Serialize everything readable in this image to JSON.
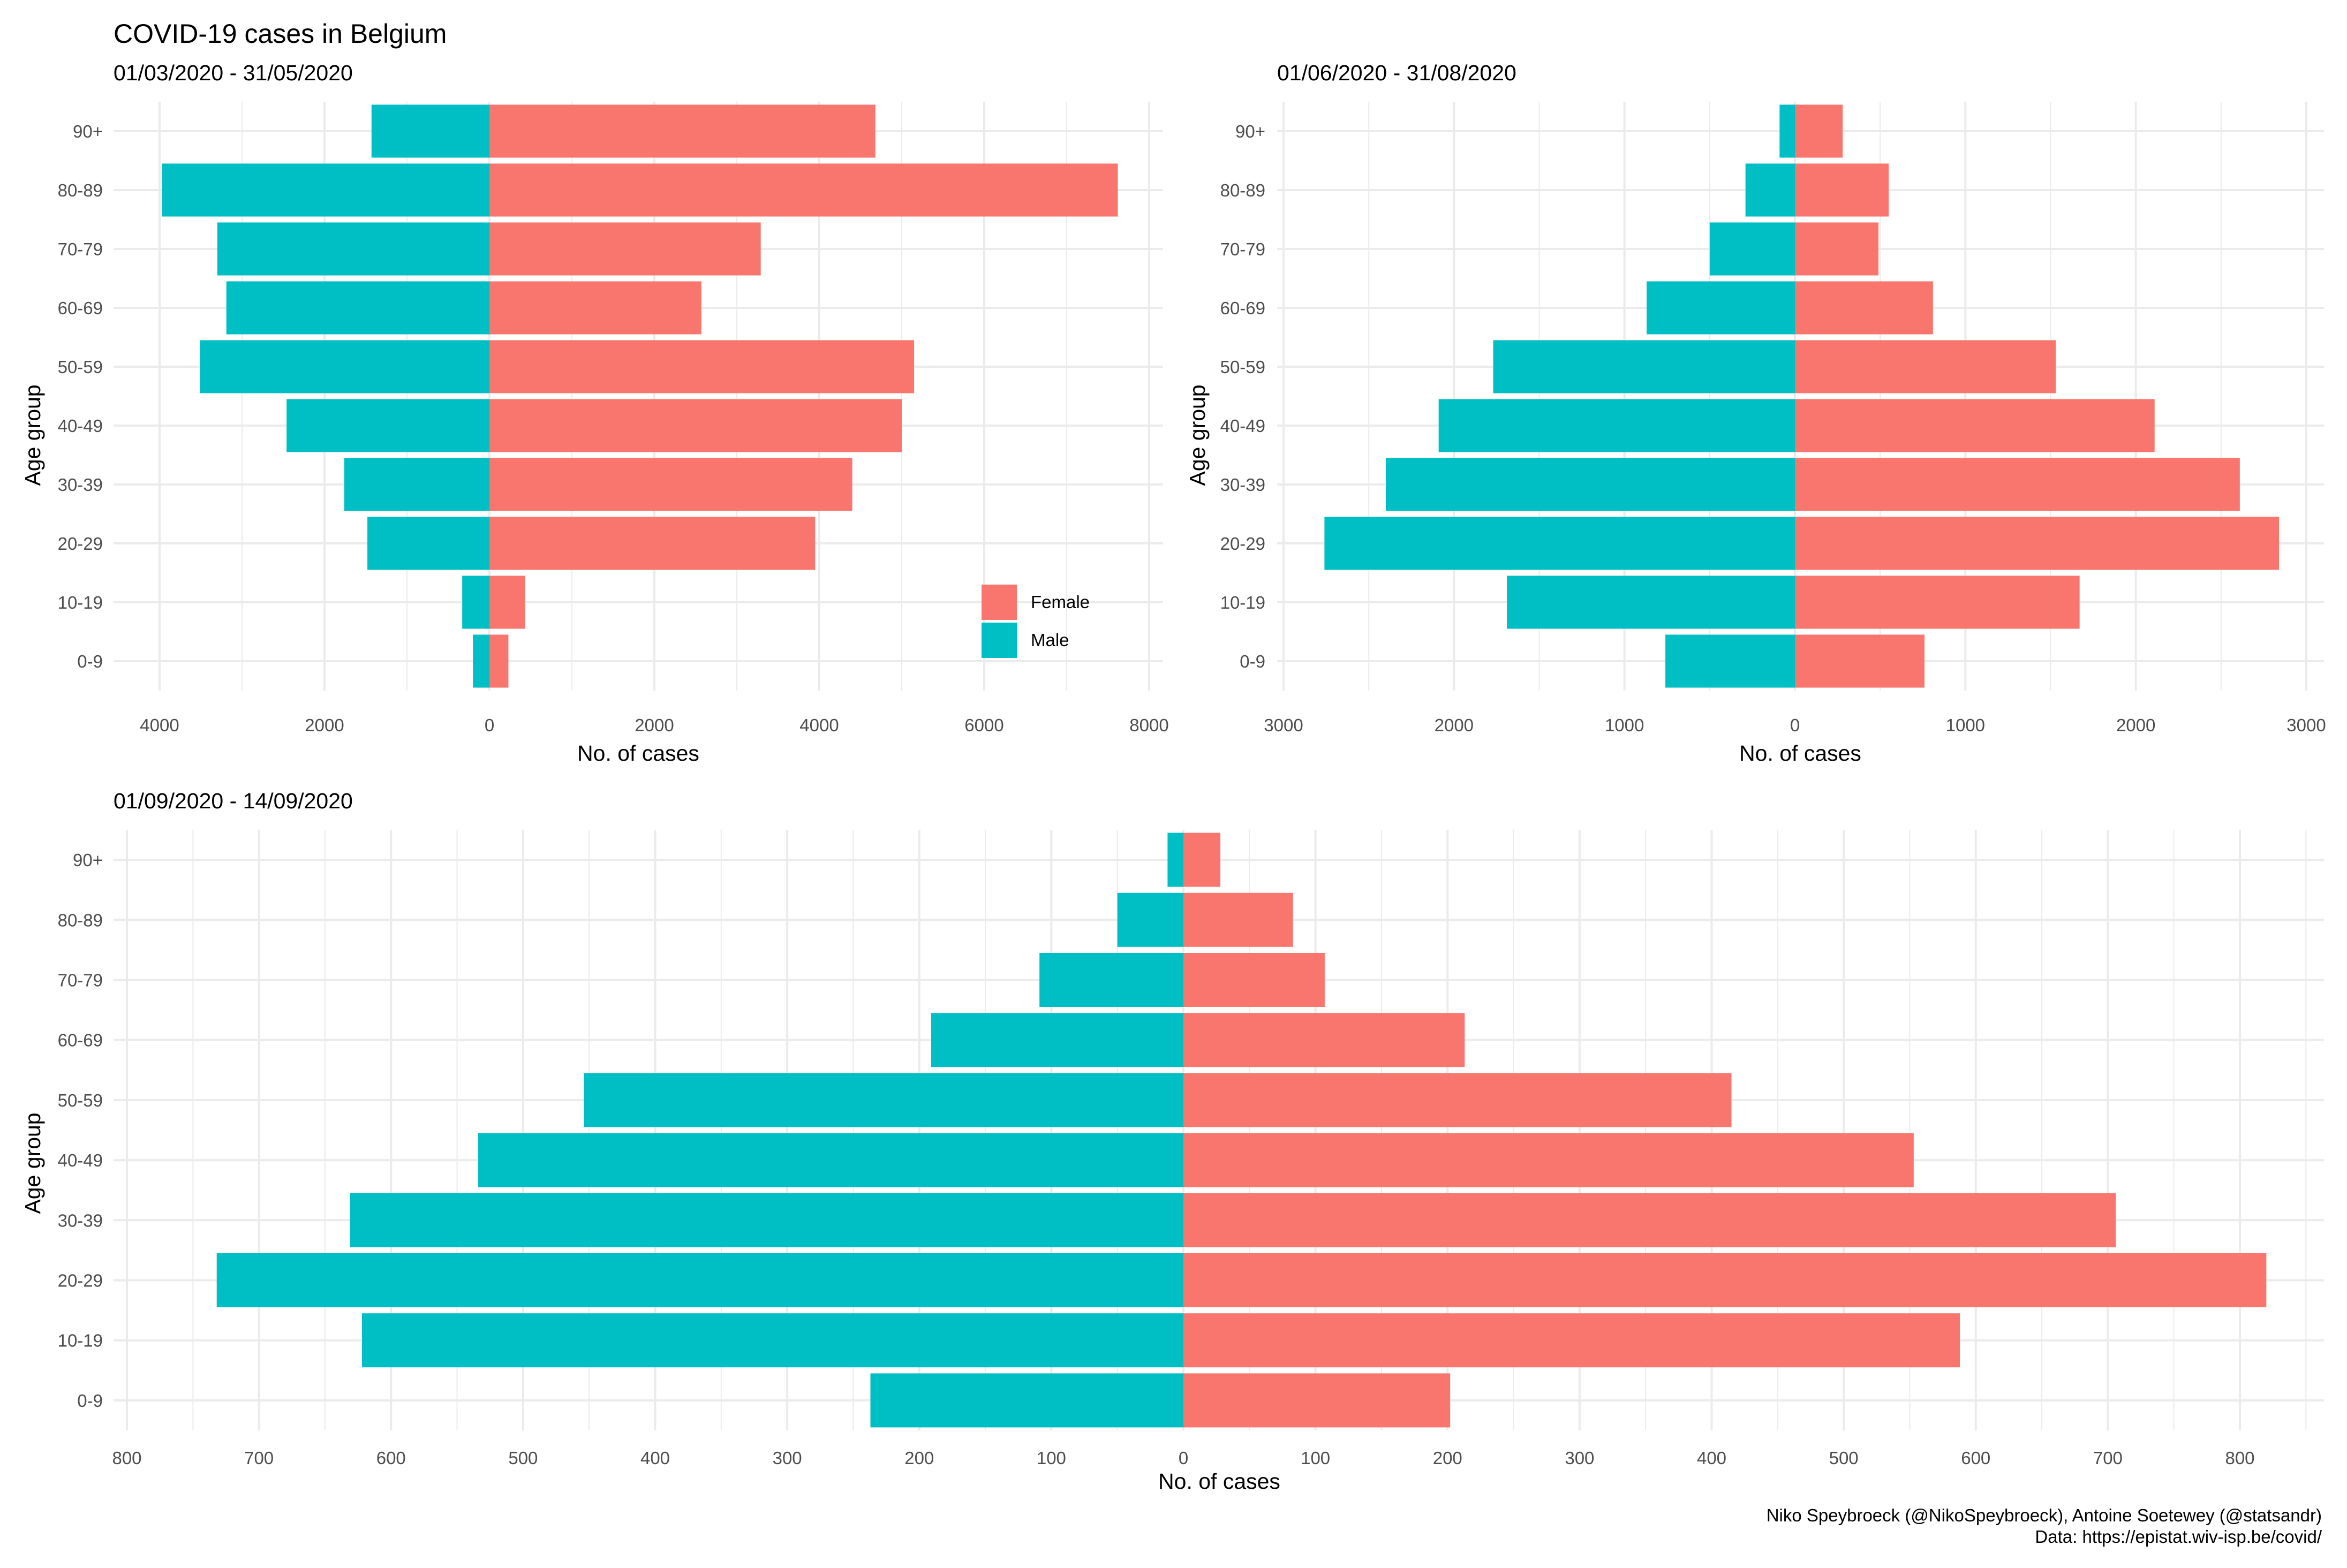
{
  "title": "COVID-19 cases in Belgium",
  "caption_line1": "Niko Speybroeck (@NikoSpeybroeck), Antoine Soetewey (@statsandr)",
  "caption_line2": "Data: https://epistat.wiv-isp.be/covid/",
  "colors": {
    "female": "#F8766D",
    "male": "#00BFC4"
  },
  "legend": {
    "position": "inside-bottom-right",
    "items": [
      {
        "label": "Female",
        "color": "#F8766D"
      },
      {
        "label": "Male",
        "color": "#00BFC4"
      }
    ]
  },
  "chart_data": [
    {
      "type": "bar",
      "orientation": "horizontal",
      "subtitle": "01/03/2020 - 31/05/2020",
      "xlabel": "No. of cases",
      "ylabel": "Age group",
      "categories": [
        "0-9",
        "10-19",
        "20-29",
        "30-39",
        "40-49",
        "50-59",
        "60-69",
        "70-79",
        "80-89",
        "90+"
      ],
      "series": [
        {
          "name": "Female",
          "values": [
            230,
            430,
            3950,
            4400,
            5000,
            5150,
            2570,
            3290,
            7620,
            4680
          ]
        },
        {
          "name": "Male",
          "values": [
            200,
            330,
            1480,
            1760,
            2460,
            3510,
            3190,
            3300,
            3970,
            1430
          ]
        }
      ],
      "xlim": [
        -4000,
        8000
      ],
      "ticks": [
        -4000,
        -2000,
        0,
        2000,
        4000,
        6000,
        8000
      ],
      "tick_labels": [
        "4000",
        "2000",
        "0",
        "2000",
        "4000",
        "6000",
        "8000"
      ],
      "grid": true,
      "legend": "inside-bottom-right"
    },
    {
      "type": "bar",
      "orientation": "horizontal",
      "subtitle": "01/06/2020 - 31/08/2020",
      "xlabel": "No. of cases",
      "ylabel": "Age group",
      "categories": [
        "0-9",
        "10-19",
        "20-29",
        "30-39",
        "40-49",
        "50-59",
        "60-69",
        "70-79",
        "80-89",
        "90+"
      ],
      "series": [
        {
          "name": "Female",
          "values": [
            760,
            1670,
            2840,
            2610,
            2110,
            1530,
            810,
            490,
            550,
            280
          ]
        },
        {
          "name": "Male",
          "values": [
            760,
            1690,
            2760,
            2400,
            2090,
            1770,
            870,
            500,
            290,
            90
          ]
        }
      ],
      "xlim": [
        -3000,
        3000
      ],
      "ticks": [
        -3000,
        -2000,
        -1000,
        0,
        1000,
        2000,
        3000
      ],
      "tick_labels": [
        "3000",
        "2000",
        "1000",
        "0",
        "1000",
        "2000",
        "3000"
      ],
      "grid": true
    },
    {
      "type": "bar",
      "orientation": "horizontal",
      "subtitle": "01/09/2020 - 14/09/2020",
      "xlabel": "No. of cases",
      "ylabel": "Age group",
      "categories": [
        "0-9",
        "10-19",
        "20-29",
        "30-39",
        "40-49",
        "50-59",
        "60-69",
        "70-79",
        "80-89",
        "90+"
      ],
      "series": [
        {
          "name": "Female",
          "values": [
            202,
            588,
            820,
            706,
            553,
            415,
            213,
            107,
            83,
            28
          ]
        },
        {
          "name": "Male",
          "values": [
            237,
            622,
            732,
            631,
            534,
            454,
            191,
            109,
            50,
            12
          ]
        }
      ],
      "xlim": [
        -800,
        800
      ],
      "ticks": [
        -800,
        -700,
        -600,
        -500,
        -400,
        -300,
        -200,
        -100,
        0,
        100,
        200,
        300,
        400,
        500,
        600,
        700,
        800
      ],
      "tick_labels": [
        "800",
        "700",
        "600",
        "500",
        "400",
        "300",
        "200",
        "100",
        "0",
        "100",
        "200",
        "300",
        "400",
        "500",
        "600",
        "700",
        "800"
      ],
      "grid": true
    }
  ]
}
